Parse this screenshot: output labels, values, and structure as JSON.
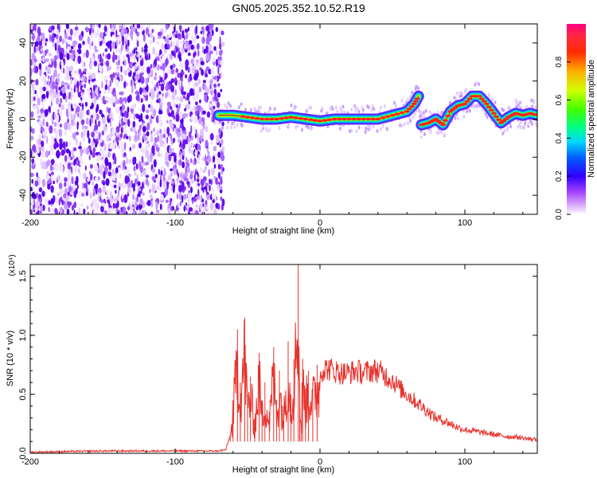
{
  "title": "GN05.2025.352.10.52.R19",
  "chart_data": [
    {
      "type": "heatmap",
      "xlabel": "Height of straight line (km)",
      "ylabel": "Frequency (Hz)",
      "xlim": [
        -200,
        150
      ],
      "ylim": [
        -50,
        50
      ],
      "xticks": [
        -200,
        -100,
        0,
        100
      ],
      "yticks": [
        -40,
        -20,
        0,
        20,
        40
      ],
      "colorbar": {
        "label": "Normalized spectral amplitude",
        "range": [
          0,
          1
        ],
        "ticks": [
          "0.0",
          "0.2",
          "0.4",
          "0.6",
          "0.8"
        ]
      },
      "noise_region_x": [
        -200,
        -70
      ],
      "ridge_x": [
        -70,
        -60,
        -50,
        -40,
        -30,
        -20,
        -10,
        0,
        10,
        20,
        30,
        40,
        50,
        60,
        65,
        68,
        70,
        75,
        80,
        85,
        90,
        95,
        100,
        105,
        110,
        115,
        120,
        125,
        130,
        135,
        140,
        145,
        150
      ],
      "ridge_y": [
        2,
        2,
        1,
        0,
        0,
        1,
        0,
        -1,
        0,
        0,
        0,
        0,
        2,
        4,
        8,
        12,
        -3,
        -2,
        0,
        -3,
        4,
        7,
        8,
        12,
        12,
        8,
        3,
        -2,
        1,
        3,
        2,
        3,
        2
      ]
    },
    {
      "type": "line",
      "xlabel": "Height of straight line (km)",
      "ylabel": "SNR (10 * v/v)",
      "y_multiplier": "(x10⁴)",
      "xlim": [
        -200,
        150
      ],
      "ylim": [
        0,
        1.6
      ],
      "xticks": [
        -200,
        -100,
        0,
        100
      ],
      "yticks": [
        "0.0",
        "0.5",
        "1.0",
        "1.5"
      ],
      "series": [
        {
          "color": "#e8302a",
          "x": [
            -200,
            -150,
            -100,
            -70,
            -65,
            -62,
            -60,
            -57,
            -55,
            -52,
            -50,
            -48,
            -45,
            -42,
            -40,
            -38,
            -35,
            -32,
            -30,
            -28,
            -25,
            -22,
            -20,
            -18,
            -15,
            -14,
            -13,
            -12,
            -10,
            -8,
            -5,
            -2,
            0,
            5,
            10,
            15,
            20,
            25,
            30,
            35,
            40,
            45,
            50,
            55,
            60,
            65,
            70,
            75,
            80,
            85,
            90,
            95,
            100,
            105,
            110,
            115,
            120,
            125,
            130,
            135,
            140,
            145,
            150
          ],
          "y": [
            0.01,
            0.02,
            0.02,
            0.02,
            0.03,
            0.15,
            0.45,
            1.05,
            0.6,
            1.15,
            0.5,
            0.65,
            0.3,
            0.85,
            0.4,
            0.6,
            0.35,
            0.9,
            0.45,
            0.7,
            0.4,
            0.95,
            0.5,
            0.8,
            1.6,
            0.6,
            0.25,
            0.8,
            0.55,
            0.7,
            0.6,
            0.75,
            0.7,
            0.72,
            0.7,
            0.68,
            0.68,
            0.7,
            0.68,
            0.7,
            0.7,
            0.66,
            0.62,
            0.55,
            0.5,
            0.45,
            0.4,
            0.35,
            0.3,
            0.28,
            0.25,
            0.22,
            0.2,
            0.19,
            0.18,
            0.17,
            0.16,
            0.15,
            0.14,
            0.14,
            0.13,
            0.12,
            0.12
          ]
        }
      ]
    }
  ]
}
